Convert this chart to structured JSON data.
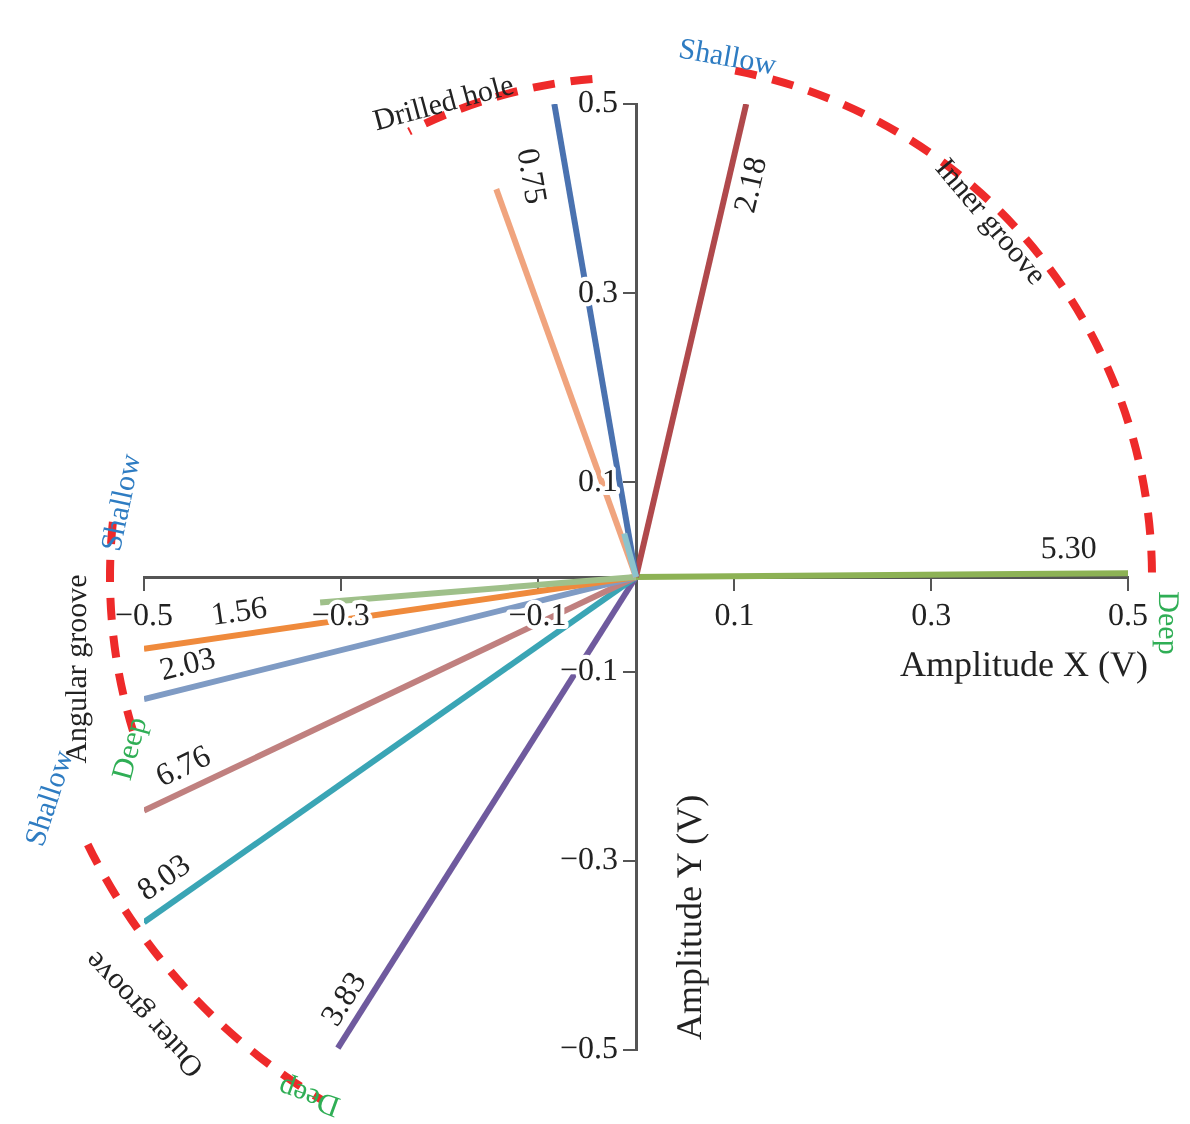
{
  "chart_data": {
    "type": "line",
    "xlabel": "Amplitude X (V)",
    "ylabel": "Amplitude Y (V)",
    "xlim": [
      -0.5,
      0.5
    ],
    "ylim": [
      -0.5,
      0.5
    ],
    "xticks": [
      -0.5,
      -0.3,
      -0.1,
      0.1,
      0.3,
      0.5
    ],
    "yticks": [
      -0.5,
      -0.3,
      -0.1,
      0.1,
      0.3,
      0.5
    ],
    "grid": false,
    "legend": false,
    "marker": "none",
    "line_style": "solid",
    "series": [
      {
        "color": "#8cc3cc",
        "x": [
          0,
          -0.012
        ],
        "values": [
          0,
          0.046
        ]
      },
      {
        "color": "#f0a47e",
        "x": [
          0,
          -0.142
        ],
        "values": [
          0,
          0.41
        ]
      },
      {
        "name": "0.75",
        "color": "#4a72b0",
        "x": [
          0,
          -0.083
        ],
        "values": [
          0,
          0.5
        ]
      },
      {
        "name": "2.18",
        "color": "#b0494c",
        "x": [
          0,
          0.112
        ],
        "values": [
          0,
          0.5
        ]
      },
      {
        "name": "5.30",
        "color": "#8db255",
        "x": [
          0,
          0.5
        ],
        "values": [
          0,
          0.004
        ]
      },
      {
        "color": "#9fc08a",
        "x": [
          0,
          -0.321
        ],
        "values": [
          0,
          -0.027
        ]
      },
      {
        "name": "1.56",
        "color": "#ef8a3c",
        "x": [
          0,
          -0.5
        ],
        "values": [
          0,
          -0.076
        ]
      },
      {
        "name": "2.03",
        "color": "#7f9bc4",
        "x": [
          0,
          -0.5
        ],
        "values": [
          0,
          -0.129
        ]
      },
      {
        "name": "6.76",
        "color": "#c0807f",
        "x": [
          0,
          -0.5
        ],
        "values": [
          0,
          -0.247
        ]
      },
      {
        "name": "8.03",
        "color": "#3aa5b5",
        "x": [
          0,
          -0.5
        ],
        "values": [
          0,
          -0.365
        ]
      },
      {
        "name": "3.83",
        "color": "#6f5a9e",
        "x": [
          0,
          -0.303
        ],
        "values": [
          0,
          -0.498
        ]
      }
    ],
    "annotations": [
      "Drilled hole",
      "Shallow",
      "Inner groove",
      "Deep",
      "Shallow",
      "Angular groove",
      "Deep",
      "Shallow",
      "Outer groove",
      "Deep"
    ]
  }
}
